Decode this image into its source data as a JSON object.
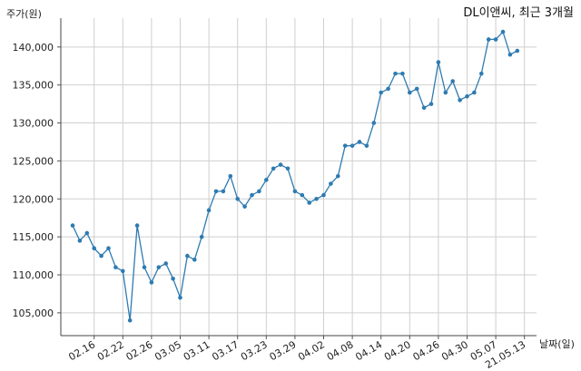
{
  "chart_data": {
    "type": "line",
    "title": "DL이앤씨, 최근 3개월",
    "xlabel": "날짜(일)",
    "ylabel": "주가(원)",
    "ylim": [
      102000,
      143800
    ],
    "yticks": [
      105000,
      110000,
      115000,
      120000,
      125000,
      130000,
      135000,
      140000
    ],
    "ytick_labels": [
      "105,000",
      "110,000",
      "115,000",
      "120,000",
      "125,000",
      "130,000",
      "135,000",
      "140,000"
    ],
    "xticks": [
      "02.16",
      "02.22",
      "02.26",
      "03.05",
      "03.11",
      "03.17",
      "03.23",
      "03.29",
      "04.02",
      "04.08",
      "04.14",
      "04.20",
      "04.26",
      "04.30",
      "05.07",
      "21.05.13"
    ],
    "xtick_index": [
      3,
      7,
      11,
      15,
      19,
      23,
      27,
      31,
      35,
      39,
      43,
      47,
      51,
      55,
      59,
      63
    ],
    "grid": true,
    "color": "#2e7bb0",
    "series": [
      {
        "values": [
          116500,
          114500,
          115500,
          113500,
          112500,
          113500,
          111000,
          110500,
          104000,
          116500,
          111000,
          109000,
          111000,
          111500,
          109500,
          107000,
          112500,
          112000,
          115000,
          118500,
          121000,
          121000,
          123000,
          120000,
          119000,
          120500,
          121000,
          122500,
          124000,
          124500,
          124000,
          121000,
          120500,
          119500,
          120000,
          120500,
          122000,
          123000,
          127000,
          127000,
          127500,
          127000,
          130000,
          134000,
          134500,
          136500,
          136500,
          134000,
          134500,
          132000,
          132500,
          138000,
          134000,
          135500,
          133000,
          133500,
          134000,
          136500,
          141000,
          141000,
          142000,
          139000,
          139500
        ]
      }
    ]
  }
}
